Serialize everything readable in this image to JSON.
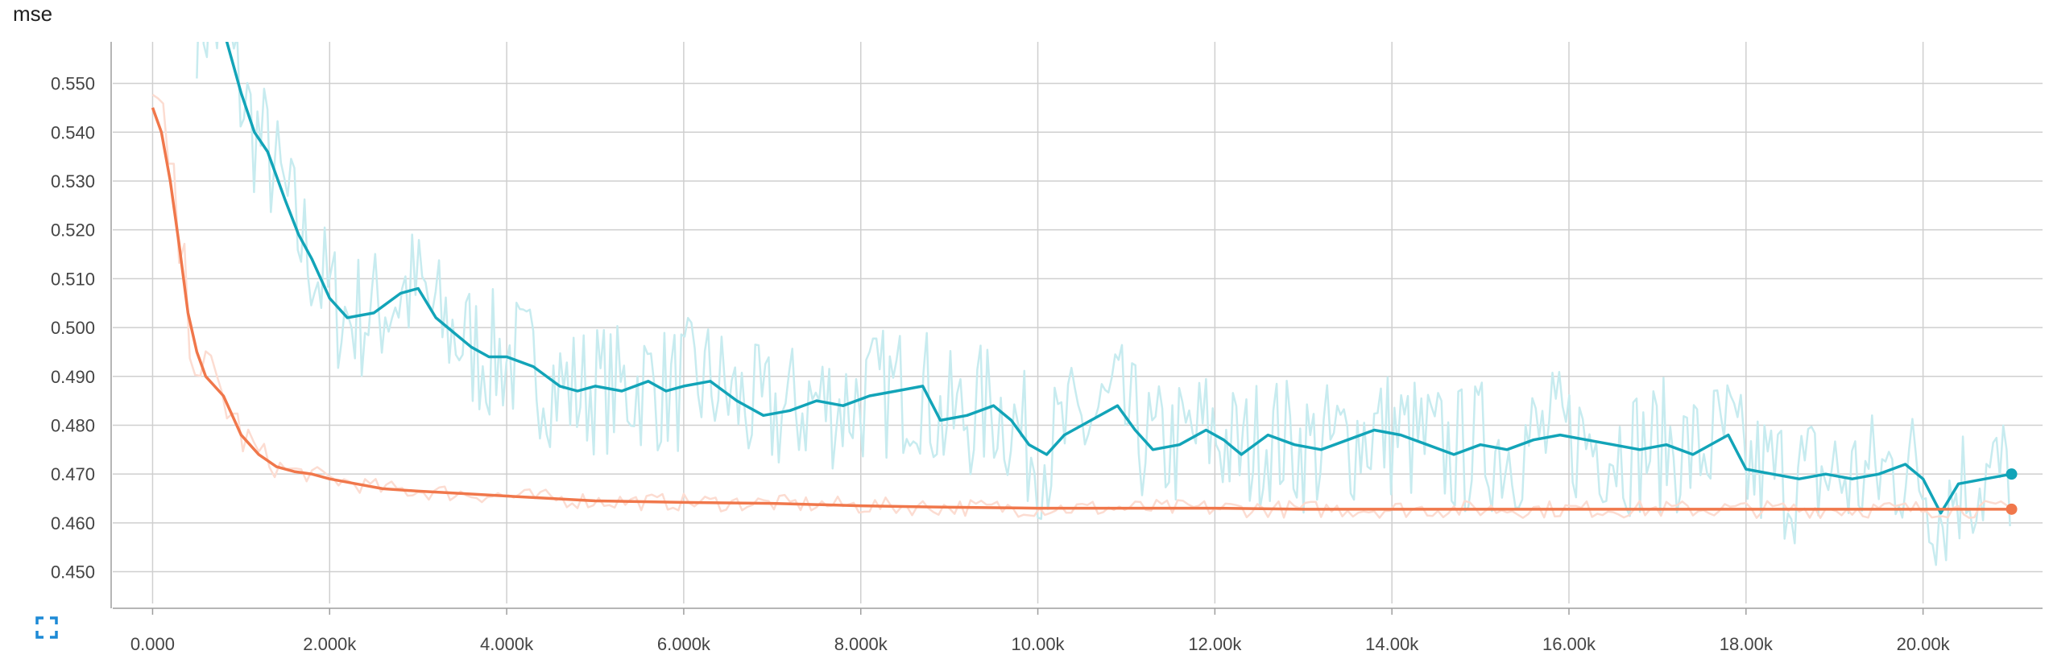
{
  "chart_data": {
    "type": "line",
    "title": "mse",
    "xlabel": "",
    "ylabel": "",
    "xlim": [
      -450,
      21350
    ],
    "ylim": [
      0.4435,
      0.5585
    ],
    "x_ticks": [
      0,
      2000,
      4000,
      6000,
      8000,
      10000,
      12000,
      14000,
      16000,
      18000,
      20000
    ],
    "x_tick_labels": [
      "0.000",
      "2.000k",
      "4.000k",
      "6.000k",
      "8.000k",
      "10.00k",
      "12.00k",
      "14.00k",
      "16.00k",
      "18.00k",
      "20.00k"
    ],
    "y_ticks": [
      0.45,
      0.46,
      0.47,
      0.48,
      0.49,
      0.5,
      0.51,
      0.52,
      0.53,
      0.54,
      0.55
    ],
    "y_tick_labels": [
      "0.450",
      "0.460",
      "0.470",
      "0.480",
      "0.490",
      "0.500",
      "0.510",
      "0.520",
      "0.530",
      "0.540",
      "0.550"
    ],
    "grid": true,
    "series": [
      {
        "color": "#12a4b8",
        "raw_color": "#c7ebef",
        "x": [
          500,
          800,
          1000,
          1150,
          1300,
          1500,
          1650,
          1800,
          2000,
          2200,
          2500,
          2800,
          3000,
          3200,
          3400,
          3600,
          3800,
          4000,
          4300,
          4600,
          4800,
          5000,
          5300,
          5600,
          5800,
          6000,
          6300,
          6600,
          6900,
          7200,
          7500,
          7800,
          8100,
          8400,
          8700,
          8900,
          9200,
          9500,
          9700,
          9900,
          10100,
          10300,
          10600,
          10900,
          11100,
          11300,
          11600,
          11900,
          12100,
          12300,
          12600,
          12900,
          13200,
          13500,
          13800,
          14100,
          14400,
          14700,
          15000,
          15300,
          15600,
          15900,
          16200,
          16500,
          16800,
          17100,
          17400,
          17800,
          18000,
          18300,
          18600,
          18900,
          19200,
          19500,
          19800,
          20000,
          20200,
          20400,
          20700,
          21000
        ],
        "y": [
          0.565,
          0.561,
          0.548,
          0.54,
          0.536,
          0.526,
          0.519,
          0.514,
          0.506,
          0.502,
          0.503,
          0.507,
          0.508,
          0.502,
          0.499,
          0.496,
          0.494,
          0.494,
          0.492,
          0.488,
          0.487,
          0.488,
          0.487,
          0.489,
          0.487,
          0.488,
          0.489,
          0.485,
          0.482,
          0.483,
          0.485,
          0.484,
          0.486,
          0.487,
          0.488,
          0.481,
          0.482,
          0.484,
          0.481,
          0.476,
          0.474,
          0.478,
          0.481,
          0.484,
          0.479,
          0.475,
          0.476,
          0.479,
          0.477,
          0.474,
          0.478,
          0.476,
          0.475,
          0.477,
          0.479,
          0.478,
          0.476,
          0.474,
          0.476,
          0.475,
          0.477,
          0.478,
          0.477,
          0.476,
          0.475,
          0.476,
          0.474,
          0.478,
          0.471,
          0.47,
          0.469,
          0.47,
          0.469,
          0.47,
          0.472,
          0.469,
          0.462,
          0.468,
          0.469,
          0.47
        ]
      },
      {
        "color": "#f0774b",
        "raw_color": "#fcdcd1",
        "x": [
          0,
          100,
          200,
          300,
          400,
          500,
          600,
          800,
          1000,
          1200,
          1400,
          1600,
          1800,
          2000,
          2300,
          2600,
          3000,
          3500,
          4000,
          4500,
          5000,
          6000,
          7000,
          8000,
          9000,
          10000,
          11000,
          12000,
          13000,
          14000,
          15000,
          16000,
          17000,
          18000,
          19000,
          20000,
          21000
        ],
        "y": [
          0.545,
          0.54,
          0.53,
          0.517,
          0.503,
          0.495,
          0.49,
          0.486,
          0.478,
          0.474,
          0.4715,
          0.4705,
          0.47,
          0.469,
          0.468,
          0.467,
          0.4665,
          0.466,
          0.4655,
          0.465,
          0.4645,
          0.4642,
          0.464,
          0.4635,
          0.4632,
          0.463,
          0.463,
          0.463,
          0.4628,
          0.4628,
          0.4628,
          0.4628,
          0.4628,
          0.4628,
          0.4628,
          0.4628,
          0.4628
        ]
      }
    ]
  },
  "ui": {
    "expand_icon": "fullscreen-icon"
  }
}
